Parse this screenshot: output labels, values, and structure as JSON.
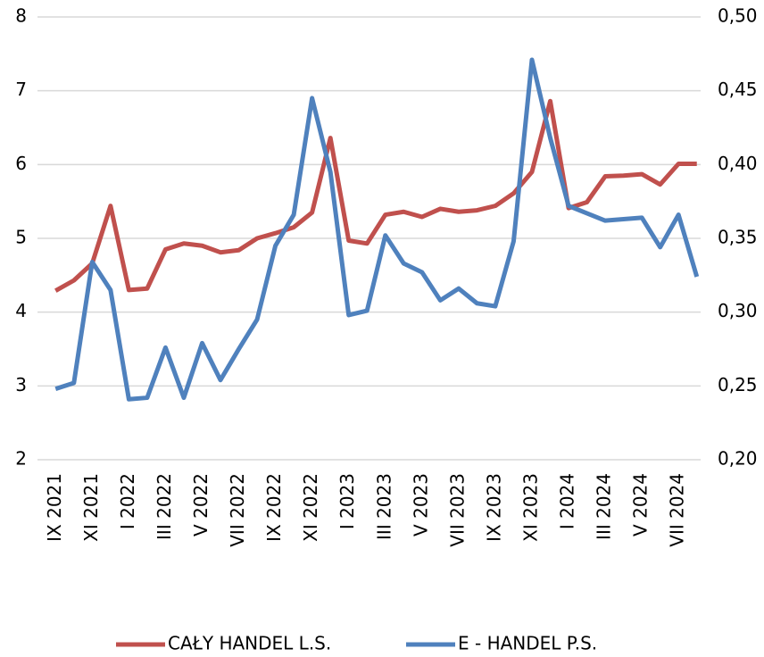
{
  "chart_data": {
    "type": "line",
    "categories": [
      "IX 2021",
      null,
      "XI 2021",
      null,
      "I 2022",
      null,
      "III 2022",
      null,
      "V 2022",
      null,
      "VII 2022",
      null,
      "IX 2022",
      null,
      "XI 2022",
      null,
      "I 2023",
      null,
      "III 2023",
      null,
      "V 2023",
      null,
      "VII 2023",
      null,
      "IX 2023",
      null,
      "XI 2023",
      null,
      "I 2024",
      null,
      "III 2024",
      null,
      "V 2024",
      null,
      "VII 2024",
      null
    ],
    "series": [
      {
        "name": "CAŁY HANDEL L.S.",
        "color": "#c0504d",
        "values": [
          4.29,
          4.43,
          4.66,
          5.44,
          4.3,
          4.32,
          4.85,
          4.93,
          4.9,
          4.81,
          4.84,
          5.0,
          5.07,
          5.15,
          5.35,
          6.36,
          4.97,
          4.93,
          5.32,
          5.36,
          5.29,
          5.4,
          5.36,
          5.38,
          5.44,
          5.61,
          5.9,
          6.86,
          5.41,
          5.49,
          5.84,
          5.85,
          5.87,
          5.73,
          6.01,
          6.01
        ]
      },
      {
        "name": "E - HANDEL P.S.",
        "color": "#4f81bd",
        "axis": "y2",
        "values": [
          0.248,
          0.252,
          0.334,
          0.315,
          0.241,
          0.242,
          0.276,
          0.242,
          0.279,
          0.254,
          0.275,
          0.295,
          0.345,
          0.366,
          0.445,
          0.395,
          0.298,
          0.301,
          0.352,
          0.333,
          0.327,
          0.308,
          0.316,
          0.306,
          0.304,
          0.348,
          0.471,
          0.418,
          0.372,
          0.367,
          0.362,
          0.363,
          0.364,
          0.344,
          0.366,
          0.324
        ]
      }
    ],
    "ylim": [
      2,
      8
    ],
    "yticks": [
      2,
      3,
      4,
      5,
      6,
      7,
      8
    ],
    "y2lim": [
      0.2,
      0.5
    ],
    "y2ticks": [
      {
        "value": 0.2,
        "label": "0,20"
      },
      {
        "value": 0.25,
        "label": "0,25"
      },
      {
        "value": 0.3,
        "label": "0,30"
      },
      {
        "value": 0.35,
        "label": "0,35"
      },
      {
        "value": 0.4,
        "label": "0,40"
      },
      {
        "value": 0.45,
        "label": "0,45"
      },
      {
        "value": 0.5,
        "label": "0,50"
      }
    ],
    "grid": true,
    "legend": "bottom"
  }
}
